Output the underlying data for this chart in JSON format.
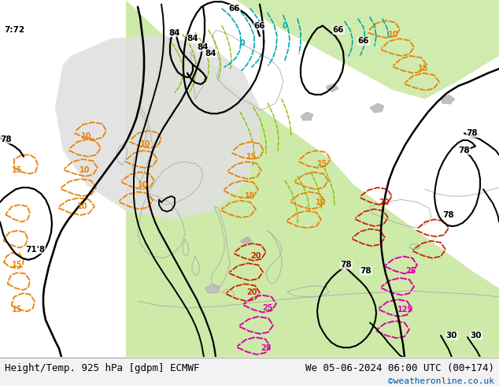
{
  "title_left": "Height/Temp. 925 hPa [gdpm] ECMWF",
  "title_right": "We 05-06-2024 06:00 UTC (00+174)",
  "credit": "©weatheronline.co.uk",
  "fig_width": 6.34,
  "fig_height": 4.9,
  "dpi": 100,
  "title_fontsize": 9,
  "credit_color": "#0055aa",
  "ocean_color": "#d8d8d8",
  "land_warm_color": "#c8e8a0",
  "bottom_bar_color": "#f2f2f2"
}
